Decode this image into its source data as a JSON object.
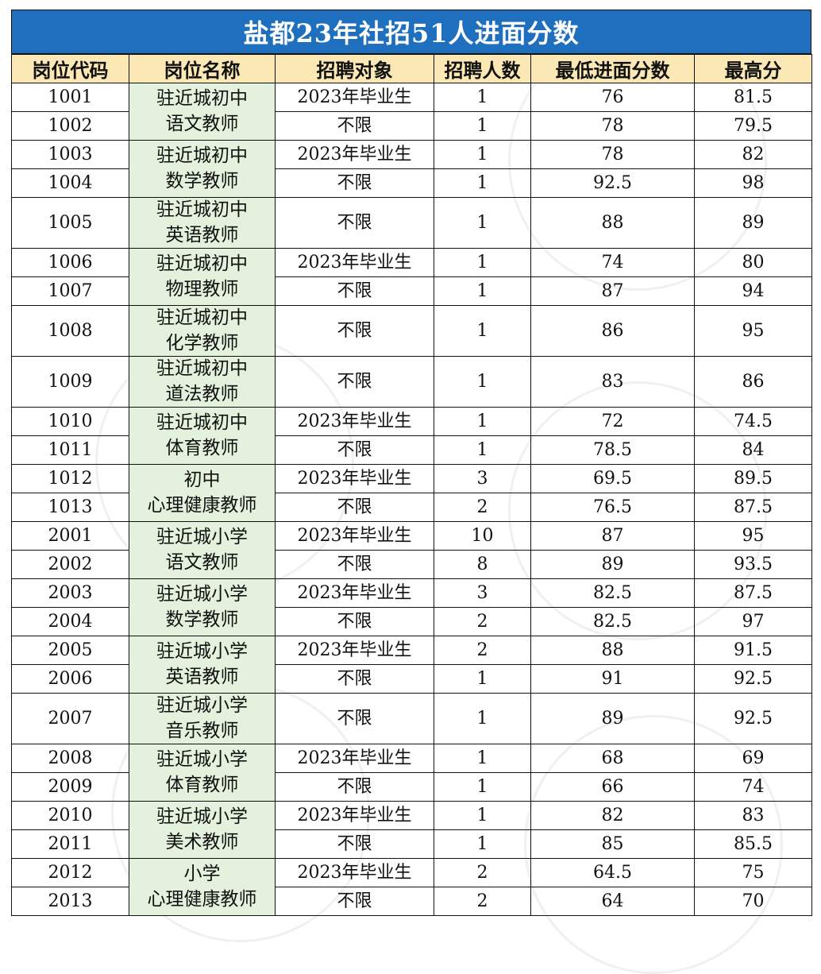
{
  "title": "盐都23年社招51人进面分数",
  "headers": [
    "岗位代码",
    "岗位名称",
    "招聘对象",
    "招聘人数",
    "最低进面分数",
    "最高分"
  ],
  "rows": [
    {
      "code": "1001",
      "position": "驻近城初中\n语文教师",
      "span": 2,
      "target": "2023年毕业生",
      "count": "1",
      "min": "76",
      "max": "81.5"
    },
    {
      "code": "1002",
      "target": "不限",
      "count": "1",
      "min": "78",
      "max": "79.5"
    },
    {
      "code": "1003",
      "position": "驻近城初中\n数学教师",
      "span": 2,
      "target": "2023年毕业生",
      "count": "1",
      "min": "78",
      "max": "82"
    },
    {
      "code": "1004",
      "target": "不限",
      "count": "1",
      "min": "92.5",
      "max": "98"
    },
    {
      "code": "1005",
      "position": "驻近城初中\n英语教师",
      "span": 1,
      "tall": true,
      "target": "不限",
      "count": "1",
      "min": "88",
      "max": "89"
    },
    {
      "code": "1006",
      "position": "驻近城初中\n物理教师",
      "span": 2,
      "target": "2023年毕业生",
      "count": "1",
      "min": "74",
      "max": "80"
    },
    {
      "code": "1007",
      "target": "不限",
      "count": "1",
      "min": "87",
      "max": "94"
    },
    {
      "code": "1008",
      "position": "驻近城初中\n化学教师",
      "span": 1,
      "tall": true,
      "target": "不限",
      "count": "1",
      "min": "86",
      "max": "95"
    },
    {
      "code": "1009",
      "position": "驻近城初中\n道法教师",
      "span": 1,
      "tall": true,
      "target": "不限",
      "count": "1",
      "min": "83",
      "max": "86"
    },
    {
      "code": "1010",
      "position": "驻近城初中\n体育教师",
      "span": 2,
      "target": "2023年毕业生",
      "count": "1",
      "min": "72",
      "max": "74.5"
    },
    {
      "code": "1011",
      "target": "不限",
      "count": "1",
      "min": "78.5",
      "max": "84"
    },
    {
      "code": "1012",
      "position": "初中\n心理健康教师",
      "span": 2,
      "target": "2023年毕业生",
      "count": "3",
      "min": "69.5",
      "max": "89.5"
    },
    {
      "code": "1013",
      "target": "不限",
      "count": "2",
      "min": "76.5",
      "max": "87.5"
    },
    {
      "code": "2001",
      "position": "驻近城小学\n语文教师",
      "span": 2,
      "target": "2023年毕业生",
      "count": "10",
      "min": "87",
      "max": "95"
    },
    {
      "code": "2002",
      "target": "不限",
      "count": "8",
      "min": "89",
      "max": "93.5"
    },
    {
      "code": "2003",
      "position": "驻近城小学\n数学教师",
      "span": 2,
      "target": "2023年毕业生",
      "count": "3",
      "min": "82.5",
      "max": "87.5"
    },
    {
      "code": "2004",
      "target": "不限",
      "count": "2",
      "min": "82.5",
      "max": "97"
    },
    {
      "code": "2005",
      "position": "驻近城小学\n英语教师",
      "span": 2,
      "target": "2023年毕业生",
      "count": "2",
      "min": "88",
      "max": "91.5"
    },
    {
      "code": "2006",
      "target": "不限",
      "count": "1",
      "min": "91",
      "max": "92.5"
    },
    {
      "code": "2007",
      "position": "驻近城小学\n音乐教师",
      "span": 1,
      "tall": true,
      "target": "不限",
      "count": "1",
      "min": "89",
      "max": "92.5"
    },
    {
      "code": "2008",
      "position": "驻近城小学\n体育教师",
      "span": 2,
      "target": "2023年毕业生",
      "count": "1",
      "min": "68",
      "max": "69"
    },
    {
      "code": "2009",
      "target": "不限",
      "count": "1",
      "min": "66",
      "max": "74"
    },
    {
      "code": "2010",
      "position": "驻近城小学\n美术教师",
      "span": 2,
      "target": "2023年毕业生",
      "count": "1",
      "min": "82",
      "max": "83"
    },
    {
      "code": "2011",
      "target": "不限",
      "count": "1",
      "min": "85",
      "max": "85.5"
    },
    {
      "code": "2012",
      "position": "小学\n心理健康教师",
      "span": 2,
      "target": "2023年毕业生",
      "count": "2",
      "min": "64.5",
      "max": "75"
    },
    {
      "code": "2013",
      "target": "不限",
      "count": "2",
      "min": "64",
      "max": "70"
    }
  ]
}
